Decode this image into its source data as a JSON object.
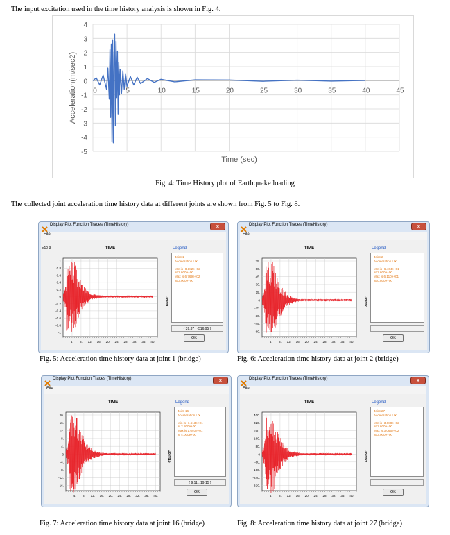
{
  "text": {
    "intro": "The input excitation used in the time history analysis is shown in Fig. 4.",
    "fig4_caption": "Fig. 4: Time History plot of Earthquake loading",
    "collected": "The collected joint acceleration time history data at different joints are shown from Fig. 5 to Fig. 8."
  },
  "chart_data": {
    "type": "line",
    "title": "",
    "xlabel": "Time (sec)",
    "ylabel": "Acceleration(m/sec2)",
    "xlim": [
      0,
      45
    ],
    "ylim": [
      -5,
      4
    ],
    "x_ticks": [
      0,
      5,
      10,
      15,
      20,
      25,
      30,
      35,
      40,
      45
    ],
    "y_ticks": [
      4,
      3,
      2,
      1,
      0,
      -1,
      -2,
      -3,
      -4,
      -5
    ],
    "grid": true,
    "color": "#4472c4",
    "series": [
      {
        "x": [
          0,
          0.5,
          1.0,
          1.5,
          2.0,
          2.2,
          2.4,
          2.5,
          2.6,
          2.7,
          2.8,
          2.9,
          3.0,
          3.1,
          3.2,
          3.3,
          3.4,
          3.5,
          3.6,
          3.7,
          3.8,
          3.9,
          4.0,
          4.2,
          4.4,
          4.6,
          4.8,
          5.0,
          5.5,
          6.0,
          6.5,
          7.0,
          8.0,
          9.0,
          10,
          12,
          15,
          20,
          25,
          30,
          35,
          40
        ],
        "y": [
          0,
          0.2,
          -0.3,
          0.4,
          -0.6,
          0.9,
          -1.3,
          2.2,
          -2.6,
          2.6,
          -4.3,
          2.9,
          -4.4,
          1.8,
          3.3,
          -3.2,
          2.8,
          -1.2,
          2.1,
          -2.4,
          1.3,
          -1.0,
          0.8,
          -0.9,
          0.7,
          -0.6,
          0.5,
          -0.4,
          0.3,
          -0.3,
          0.25,
          -0.2,
          0.15,
          -0.12,
          0.1,
          -0.08,
          0.06,
          0.05,
          -0.04,
          0.04,
          -0.03,
          0.02
        ]
      }
    ]
  },
  "windows": [
    {
      "title": "Display Plot Function Traces  (TimeHistory)",
      "close": "x",
      "menu": "File",
      "plot_title": "TIME",
      "legend_title": "Legend",
      "legend_lines": [
        "Joint 1",
        "Acceleration  UX",
        "",
        "Min is -8.182e+02",
        "at 2.600e+00",
        "Max is 6.769e+02",
        "at 3.000e+00"
      ],
      "vertical_label": "Joint1",
      "coord": "( 39.37 , -516.95 )",
      "ok": "OK",
      "exponent": "x10  3",
      "y_ticks": [
        "1",
        "0.8",
        "0.6",
        "0.4",
        "0.2",
        "0",
        "-0.2",
        "-0.4",
        "-0.6",
        "-0.8",
        "-1"
      ],
      "x_ticks": [
        "4.",
        "8.",
        "12.",
        "16.",
        "20.",
        "24.",
        "28.",
        "32.",
        "36.",
        "40."
      ],
      "caption": "Fig. 5: Acceleration time history data at joint 1 (bridge)",
      "trace_color": "#e8232a"
    },
    {
      "title": "Display Plot Function Traces  (TimeHistory)",
      "close": "x",
      "menu": "File",
      "plot_title": "TIME",
      "legend_title": "Legend",
      "legend_lines": [
        "Joint 2",
        "Acceleration  UX",
        "",
        "Min is -6.464e+01",
        "at 2.600e+00",
        "Max is 6.110e+01",
        "at 0.800e+00"
      ],
      "vertical_label": "Joint2",
      "coord": "",
      "ok": "OK",
      "exponent": "",
      "y_ticks": [
        "75.",
        "60.",
        "45.",
        "30.",
        "15.",
        "0",
        "-15.",
        "-30.",
        "-45.",
        "-60."
      ],
      "x_ticks": [
        "4.",
        "8.",
        "12.",
        "16.",
        "20.",
        "24.",
        "28.",
        "32.",
        "36.",
        "40."
      ],
      "caption": "Fig. 6: Acceleration time history data at joint 2 (bridge)",
      "trace_color": "#e8232a"
    },
    {
      "title": "Display Plot Function Traces  (TimeHistory)",
      "close": "x",
      "menu": "File",
      "plot_title": "TIME",
      "legend_title": "Legend",
      "legend_lines": [
        "Joint 16",
        "Acceleration  UX",
        "",
        "Min is -1.613e+01",
        "at 2.800e+00",
        "Max is 1.640e+01",
        "at 4.000e+00"
      ],
      "vertical_label": "Joint16",
      "coord": "( 9.11 , 19.15 )",
      "ok": "OK",
      "exponent": "",
      "y_ticks": [
        "20.",
        "16.",
        "12.",
        "8.",
        "4.",
        "0",
        "-4.",
        "-8.",
        "-12.",
        "-16."
      ],
      "x_ticks": [
        "4.",
        "8.",
        "12.",
        "16.",
        "20.",
        "24.",
        "28.",
        "32.",
        "36.",
        "40."
      ],
      "caption": "Fig. 7: Acceleration time history data at joint 16 (bridge)",
      "trace_color": "#e8232a"
    },
    {
      "title": "Display Plot Function Traces  (TimeHistory)",
      "close": "x",
      "menu": "File",
      "plot_title": "TIME",
      "legend_title": "Legend",
      "legend_lines": [
        "Joint 27",
        "Acceleration  UX",
        "",
        "Min is -3.688e+02",
        "at 2.600e+00",
        "Max is 3.066e+02",
        "at 3.000e+00"
      ],
      "vertical_label": "Joint27",
      "coord": "",
      "ok": "OK",
      "exponent": "",
      "y_ticks": [
        "400.",
        "320.",
        "240.",
        "160.",
        "80.",
        "0",
        "-80.",
        "-160.",
        "-240.",
        "-320."
      ],
      "x_ticks": [
        "4.",
        "8.",
        "12.",
        "16.",
        "20.",
        "24.",
        "28.",
        "32.",
        "36.",
        "40."
      ],
      "caption": "Fig. 8: Acceleration time history data at joint 27 (bridge)",
      "trace_color": "#e8232a"
    }
  ]
}
